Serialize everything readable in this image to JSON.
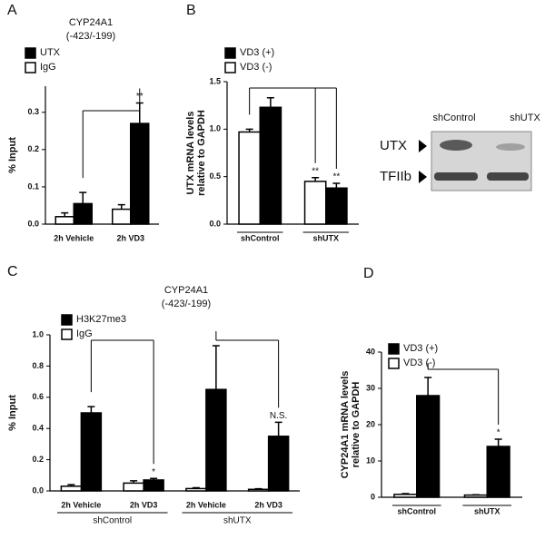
{
  "chart_data": [
    {
      "type": "bar",
      "panel": "A",
      "title": [
        "CYP24A1",
        "(-423/-199)"
      ],
      "ylabel": "% Input",
      "categories": [
        "2h Vehicle",
        "2h VD3"
      ],
      "series": [
        {
          "name": "UTX",
          "color": "#000000",
          "values": [
            0.055,
            0.27
          ],
          "errors": [
            0.03,
            0.055
          ],
          "annotations": [
            null,
            "**"
          ]
        },
        {
          "name": "IgG",
          "color": "#ffffff",
          "values": [
            0.02,
            0.04
          ],
          "errors": [
            0.01,
            0.012
          ],
          "annotations": [
            null,
            null
          ]
        }
      ],
      "ylim": [
        0,
        0.37
      ],
      "yticks": [
        {
          "value": 0,
          "label": "0.0"
        },
        {
          "value": 0.1,
          "label": "0.1"
        },
        {
          "value": 0.2,
          "label": "0.2"
        },
        {
          "value": 0.3,
          "label": "0.3"
        }
      ],
      "legend": "upper left"
    },
    {
      "type": "bar",
      "panel": "B",
      "ylabel": [
        "UTX mRNA levels",
        "relative to GAPDH"
      ],
      "categories": [
        "shControl",
        "shUTX"
      ],
      "series": [
        {
          "name": "VD3 (+)",
          "color": "#000000",
          "values": [
            1.23,
            0.38
          ],
          "errors": [
            0.1,
            0.05
          ],
          "annotations": [
            null,
            "**"
          ]
        },
        {
          "name": "VD3 (-)",
          "color": "#ffffff",
          "values": [
            0.97,
            0.45
          ],
          "errors": [
            0.03,
            0.04
          ],
          "annotations": [
            null,
            "**"
          ]
        }
      ],
      "ylim": [
        0,
        1.5
      ],
      "yticks": [
        {
          "value": 0,
          "label": "0.0"
        },
        {
          "value": 0.5,
          "label": "0.5"
        },
        {
          "value": 1,
          "label": "1.0"
        },
        {
          "value": 1.5,
          "label": "1.5"
        }
      ],
      "legend": "upper left"
    },
    {
      "type": "bar",
      "panel": "C",
      "title": [
        "CYP24A1",
        "(-423/-199)"
      ],
      "ylabel": "% Input",
      "categories": [
        "2h Vehicle",
        "2h VD3",
        "2h Vehicle",
        "2h VD3"
      ],
      "groups": [
        "shControl",
        "shUTX"
      ],
      "series": [
        {
          "name": "H3K27me3",
          "color": "#000000",
          "values": [
            0.5,
            0.07,
            0.65,
            0.35
          ],
          "errors": [
            0.04,
            0.01,
            0.28,
            0.09
          ],
          "annotations": [
            null,
            "*",
            null,
            "N.S."
          ]
        },
        {
          "name": "IgG",
          "color": "#ffffff",
          "values": [
            0.03,
            0.05,
            0.015,
            0.01
          ],
          "errors": [
            0.01,
            0.015,
            0.005,
            0.004
          ],
          "annotations": [
            null,
            null,
            null,
            null
          ]
        }
      ],
      "ylim": [
        0,
        1.0
      ],
      "yticks": [
        {
          "value": 0,
          "label": "0.0"
        },
        {
          "value": 0.2,
          "label": "0.2"
        },
        {
          "value": 0.4,
          "label": "0.4"
        },
        {
          "value": 0.6,
          "label": "0.6"
        },
        {
          "value": 0.8,
          "label": "0.8"
        },
        {
          "value": 1,
          "label": "1.0"
        }
      ],
      "legend": "upper left"
    },
    {
      "type": "bar",
      "panel": "D",
      "ylabel": [
        "CYP24A1 mRNA levels",
        "relative to GAPDH"
      ],
      "categories": [
        "shControl",
        "shUTX"
      ],
      "series": [
        {
          "name": "VD3 (+)",
          "color": "#000000",
          "values": [
            28,
            14
          ],
          "errors": [
            5,
            2
          ],
          "annotations": [
            null,
            "*"
          ]
        },
        {
          "name": "VD3 (-)",
          "color": "#ffffff",
          "values": [
            0.8,
            0.6
          ],
          "errors": [
            0.2,
            0.1
          ],
          "annotations": [
            null,
            null
          ]
        }
      ],
      "ylim": [
        0,
        40
      ],
      "yticks": [
        0,
        10,
        20,
        30,
        40
      ],
      "legend": "upper left"
    }
  ],
  "blot": {
    "lanes": [
      "shControl",
      "shUTX"
    ],
    "rows": [
      "UTX",
      "TFIIb"
    ]
  }
}
